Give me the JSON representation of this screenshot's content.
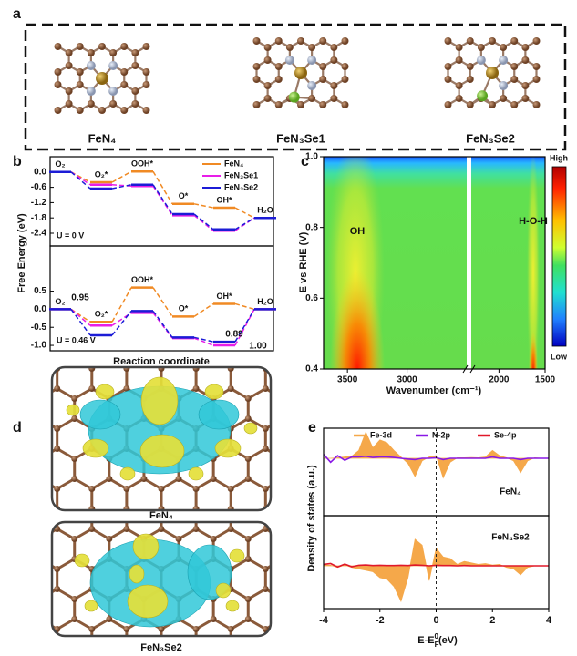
{
  "panel_labels": [
    "a",
    "b",
    "c",
    "d",
    "e"
  ],
  "structures": {
    "labels": [
      "FeN₄",
      "FeN₃Se1",
      "FeN₃Se2"
    ]
  },
  "chart_data": [
    {
      "type": "energy_profile",
      "ylabel": "Free Energy (eV)",
      "xlabel": "Reaction coordinate",
      "legend_loc": "upper right",
      "subplots": [
        {
          "condition": "U = 0 V",
          "condition_color": "#e02020",
          "categories": [
            "O₂",
            "O₂*",
            "OOH*",
            "O*",
            "OH*",
            "H₂O"
          ],
          "ylim": [
            -2.9,
            0.6
          ],
          "yticks": [
            {
              "value": 0,
              "label": "0.0"
            },
            -0.6,
            -1.2,
            -1.8,
            -2.4
          ],
          "series": [
            {
              "name": "FeN₄",
              "color": "#f08a24",
              "values": [
                0,
                -0.4,
                0.02,
                -1.25,
                -1.4,
                -1.8
              ]
            },
            {
              "name": "FeN₃Se1",
              "color": "#e81ee8",
              "values": [
                0,
                -0.5,
                -0.55,
                -1.7,
                -2.3,
                -1.8
              ]
            },
            {
              "name": "FeN₃Se2",
              "color": "#1c1cd6",
              "values": [
                0,
                -0.65,
                -0.5,
                -1.65,
                -2.25,
                -1.8
              ]
            }
          ]
        },
        {
          "condition": "U = 0.46 V",
          "condition_color": "#e02020",
          "categories": [
            "O₂",
            "O₂*",
            "OOH*",
            "O*",
            "OH*",
            "H₂O"
          ],
          "ylim": [
            -1.15,
            1.75
          ],
          "yticks": [
            0.5,
            {
              "value": 0,
              "label": "0.0"
            },
            -0.5,
            {
              "value": -1,
              "label": "-1.0"
            }
          ],
          "series": [
            {
              "color": "#f08a24",
              "values": [
                0,
                -0.35,
                0.6,
                -0.2,
                0.15,
                0
              ]
            },
            {
              "color": "#e81ee8",
              "values": [
                0,
                -0.45,
                -0.1,
                -0.8,
                -1.0,
                0
              ]
            },
            {
              "color": "#1c1cd6",
              "values": [
                0,
                -0.72,
                -0.05,
                -0.78,
                -0.9,
                0
              ]
            }
          ],
          "annotations": [
            {
              "text": "0.95",
              "color": "#f08a24"
            },
            {
              "text": "0.89",
              "color": "#1c1cd6"
            },
            {
              "text": "1.00",
              "color": "#e81ee8"
            }
          ]
        }
      ]
    },
    {
      "type": "heatmap",
      "ylabel": "E vs RHE (V)",
      "xlabel": "Wavenumber (cm⁻¹)",
      "ylim": [
        0.4,
        1.0
      ],
      "yticks": [
        0.4,
        0.6,
        0.8,
        {
          "value": 1,
          "label": "1.0"
        }
      ],
      "x_segments": [
        {
          "xlim": [
            3700,
            2500
          ],
          "xticks": [
            3500,
            3000
          ]
        },
        {
          "xlim": [
            2300,
            1500
          ],
          "xticks": [
            2000,
            1500
          ]
        }
      ],
      "annotations": [
        "OH",
        "H-O-H"
      ],
      "annotation_color": "#e02020",
      "colormap": "jet",
      "colorbar_labels": [
        "High",
        "Low"
      ]
    },
    {
      "type": "dos",
      "ylabel": "Density of states (a.u.)",
      "xlabel": [
        "E-E",
        "F",
        "0",
        "(eV)"
      ],
      "xlim": [
        -4,
        4
      ],
      "xticks": [
        -4,
        -2,
        0,
        2,
        4
      ],
      "fermi_line": 0,
      "x": [
        -4,
        -3.75,
        -3.5,
        -3.25,
        -3,
        -2.75,
        -2.5,
        -2.25,
        -2,
        -1.75,
        -1.5,
        -1.25,
        -1,
        -0.75,
        -0.5,
        -0.25,
        0,
        0.25,
        0.5,
        0.75,
        1,
        1.25,
        1.5,
        1.75,
        2,
        2.25,
        2.5,
        2.75,
        3,
        3.25,
        3.5,
        3.75,
        4
      ],
      "subplots": [
        {
          "label": "FeN₄",
          "label_color": "#e8403a",
          "ylim": [
            -2.2,
            1.15
          ],
          "series": [
            {
              "name": "Fe-3d",
              "color": "#f5a84a",
              "fill": true,
              "values": [
                0,
                0,
                0.02,
                0.05,
                0.08,
                0.3,
                1.0,
                0.4,
                0.7,
                0.6,
                0.3,
                0.05,
                -0.2,
                -0.7,
                -0.1,
                0.05,
                0.1,
                -0.75,
                -0.15,
                0.02,
                0.02,
                0.03,
                0.02,
                0.05,
                0.3,
                0.1,
                0.02,
                -0.1,
                -0.55,
                -0.1,
                0.02,
                0,
                0
              ]
            },
            {
              "name": "N-2p",
              "color": "#8a18e6",
              "values": [
                0.15,
                -0.15,
                0.1,
                -0.08,
                0.05,
                0.05,
                0.08,
                0.03,
                0.05,
                0.05,
                0.03,
                0,
                -0.03,
                -0.05,
                0,
                0,
                0.02,
                -0.05,
                0,
                0,
                0,
                0,
                0,
                0,
                0.05,
                0,
                0,
                0,
                -0.05,
                0,
                0,
                0,
                0
              ]
            }
          ]
        },
        {
          "label": "FeN₄Se2",
          "label_color": "#e8403a",
          "ylim": [
            -1.45,
            1.7
          ],
          "series": [
            {
              "color": "#f5a84a",
              "fill": true,
              "values": [
                0.03,
                0.02,
                -0.05,
                0.03,
                -0.05,
                -0.1,
                -0.15,
                -0.2,
                -0.4,
                -0.45,
                -0.7,
                -1.2,
                -0.4,
                0.9,
                0.7,
                -0.5,
                0.6,
                0.3,
                0.25,
                0.05,
                0.15,
                0.1,
                0.05,
                0.08,
                0.03,
                0.05,
                -0.05,
                -0.1,
                -0.3,
                -0.05,
                0,
                0,
                0
              ]
            },
            {
              "name": "Se-4p",
              "color": "#e0182a",
              "values": [
                0.05,
                0.08,
                -0.04,
                0.06,
                -0.03,
                0.02,
                0.03,
                0.01,
                0.02,
                0.01,
                0.01,
                0.02,
                0.01,
                0.03,
                0.02,
                0,
                0.02,
                0.01,
                0.01,
                0,
                0.01,
                0,
                0,
                0,
                0,
                0,
                0,
                0,
                0,
                0,
                0,
                0,
                0
              ]
            }
          ]
        }
      ]
    }
  ],
  "charge_density": {
    "labels": [
      "FeN₄",
      "FeN₃Se2"
    ]
  }
}
